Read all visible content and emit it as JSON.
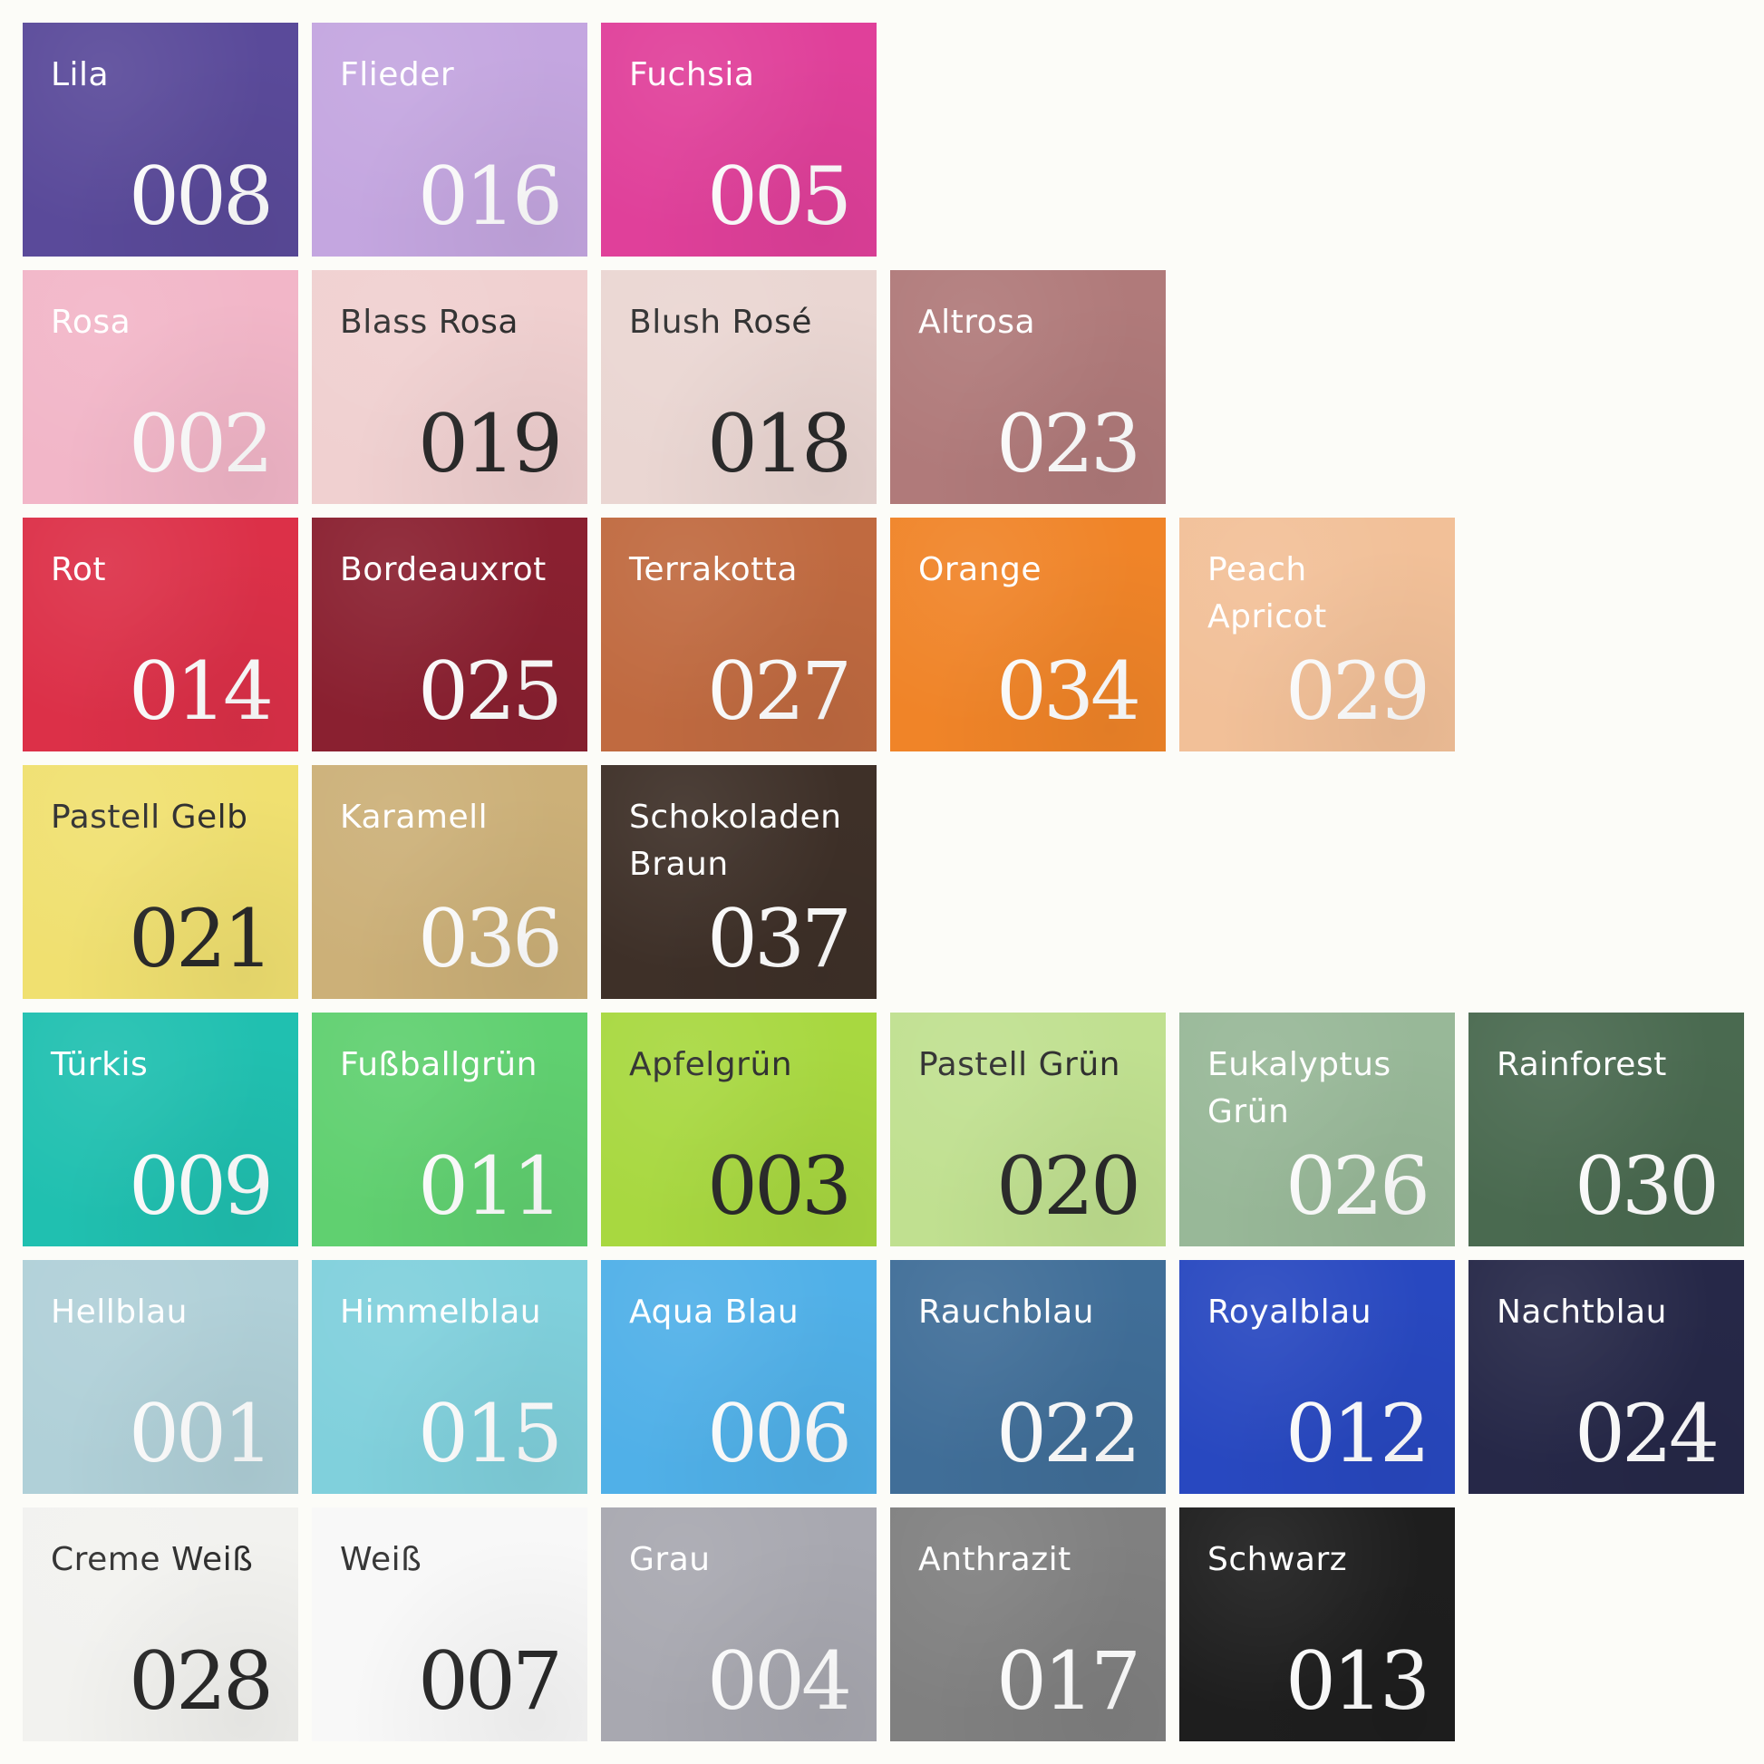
{
  "rows": [
    [
      {
        "name": "Lila",
        "code": "008",
        "color": "#5a4a9a",
        "text": "#ffffff"
      },
      {
        "name": "Flieder",
        "code": "016",
        "color": "#c4a6e0",
        "text": "#ffffff"
      },
      {
        "name": "Fuchsia",
        "code": "005",
        "color": "#e0409a",
        "text": "#ffffff"
      }
    ],
    [
      {
        "name": "Rosa",
        "code": "002",
        "color": "#f2b6c8",
        "text": "#ffffff"
      },
      {
        "name": "Blass Rosa",
        "code": "019",
        "color": "#f0d0d0",
        "text": "#2a2a2a"
      },
      {
        "name": "Blush Rosé",
        "code": "018",
        "color": "#ead6d2",
        "text": "#2a2a2a"
      },
      {
        "name": "Altrosa",
        "code": "023",
        "color": "#b07a7a",
        "text": "#ffffff"
      }
    ],
    [
      {
        "name": "Rot",
        "code": "014",
        "color": "#dc3048",
        "text": "#ffffff"
      },
      {
        "name": "Bordeauxrot",
        "code": "025",
        "color": "#8a2030",
        "text": "#ffffff"
      },
      {
        "name": "Terrakotta",
        "code": "027",
        "color": "#c06a40",
        "text": "#ffffff"
      },
      {
        "name": "Orange",
        "code": "034",
        "color": "#f08428",
        "text": "#ffffff"
      },
      {
        "name": "Peach Apricot",
        "code": "029",
        "color": "#f2c098",
        "text": "#ffffff"
      }
    ],
    [
      {
        "name": "Pastell Gelb",
        "code": "021",
        "color": "#f0e070",
        "text": "#2a2a2a"
      },
      {
        "name": "Karamell",
        "code": "036",
        "color": "#ccb078",
        "text": "#ffffff"
      },
      {
        "name": "Schokoladen Braun",
        "code": "037",
        "color": "#3e3028",
        "text": "#ffffff"
      }
    ],
    [
      {
        "name": "Türkis",
        "code": "009",
        "color": "#20c0b0",
        "text": "#ffffff"
      },
      {
        "name": "Fußballgrün",
        "code": "011",
        "color": "#60d070",
        "text": "#ffffff"
      },
      {
        "name": "Apfelgrün",
        "code": "003",
        "color": "#a8d840",
        "text": "#2a2a2a"
      },
      {
        "name": "Pastell Grün",
        "code": "020",
        "color": "#c0e090",
        "text": "#2a2a2a"
      },
      {
        "name": "Eukalyptus Grün",
        "code": "026",
        "color": "#98b898",
        "text": "#ffffff"
      },
      {
        "name": "Rainforest",
        "code": "030",
        "color": "#4a6a50",
        "text": "#ffffff"
      }
    ],
    [
      {
        "name": "Hellblau",
        "code": "001",
        "color": "#b0d0d8",
        "text": "#ffffff"
      },
      {
        "name": "Himmelblau",
        "code": "015",
        "color": "#80d0dc",
        "text": "#ffffff"
      },
      {
        "name": "Aqua Blau",
        "code": "006",
        "color": "#50b0e8",
        "text": "#ffffff"
      },
      {
        "name": "Rauchblau",
        "code": "022",
        "color": "#406e98",
        "text": "#ffffff"
      },
      {
        "name": "Royalblau",
        "code": "012",
        "color": "#2848c0",
        "text": "#ffffff"
      },
      {
        "name": "Nachtblau",
        "code": "024",
        "color": "#262848",
        "text": "#ffffff"
      }
    ],
    [
      {
        "name": "Creme Weiß",
        "code": "028",
        "color": "#f2f2ef",
        "text": "#2a2a2a"
      },
      {
        "name": "Weiß",
        "code": "007",
        "color": "#f8f8f8",
        "text": "#2a2a2a"
      },
      {
        "name": "Grau",
        "code": "004",
        "color": "#a8a8b0",
        "text": "#ffffff"
      },
      {
        "name": "Anthrazit",
        "code": "017",
        "color": "#808080",
        "text": "#ffffff"
      },
      {
        "name": "Schwarz",
        "code": "013",
        "color": "#1e1e1e",
        "text": "#ffffff"
      }
    ]
  ]
}
